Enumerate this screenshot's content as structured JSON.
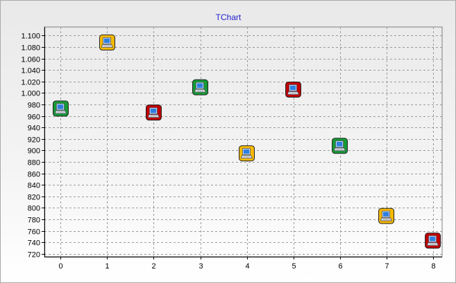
{
  "chart_data": {
    "type": "scatter",
    "title": "TChart",
    "title_color": "#1f1fcc",
    "xlabel": "",
    "ylabel": "",
    "xlim": [
      -0.35,
      8.2
    ],
    "ylim": [
      715,
      1115
    ],
    "x_ticks": [
      0,
      1,
      2,
      3,
      4,
      5,
      6,
      7,
      8
    ],
    "y_ticks": [
      720,
      740,
      760,
      780,
      800,
      820,
      840,
      860,
      880,
      900,
      920,
      940,
      960,
      980,
      1000,
      1020,
      1040,
      1060,
      1080,
      1100
    ],
    "y_tick_labels": [
      "720",
      "740",
      "760",
      "780",
      "800",
      "820",
      "840",
      "860",
      "880",
      "900",
      "920",
      "940",
      "960",
      "980",
      "1.000",
      "1.020",
      "1.040",
      "1.060",
      "1.080",
      "1.100"
    ],
    "grid": true,
    "legend": "none",
    "marker_icon": "laptop-icon",
    "points": [
      {
        "x": 0,
        "y": 973,
        "color": "#169a36"
      },
      {
        "x": 1,
        "y": 1088,
        "color": "#f5b800"
      },
      {
        "x": 2,
        "y": 966,
        "color": "#c00000"
      },
      {
        "x": 3,
        "y": 1010,
        "color": "#169a36"
      },
      {
        "x": 4,
        "y": 895,
        "color": "#f5b800"
      },
      {
        "x": 5,
        "y": 1006,
        "color": "#c00000"
      },
      {
        "x": 6,
        "y": 908,
        "color": "#169a36"
      },
      {
        "x": 7,
        "y": 786,
        "color": "#f5b800"
      },
      {
        "x": 8,
        "y": 743,
        "color": "#c00000"
      }
    ]
  }
}
